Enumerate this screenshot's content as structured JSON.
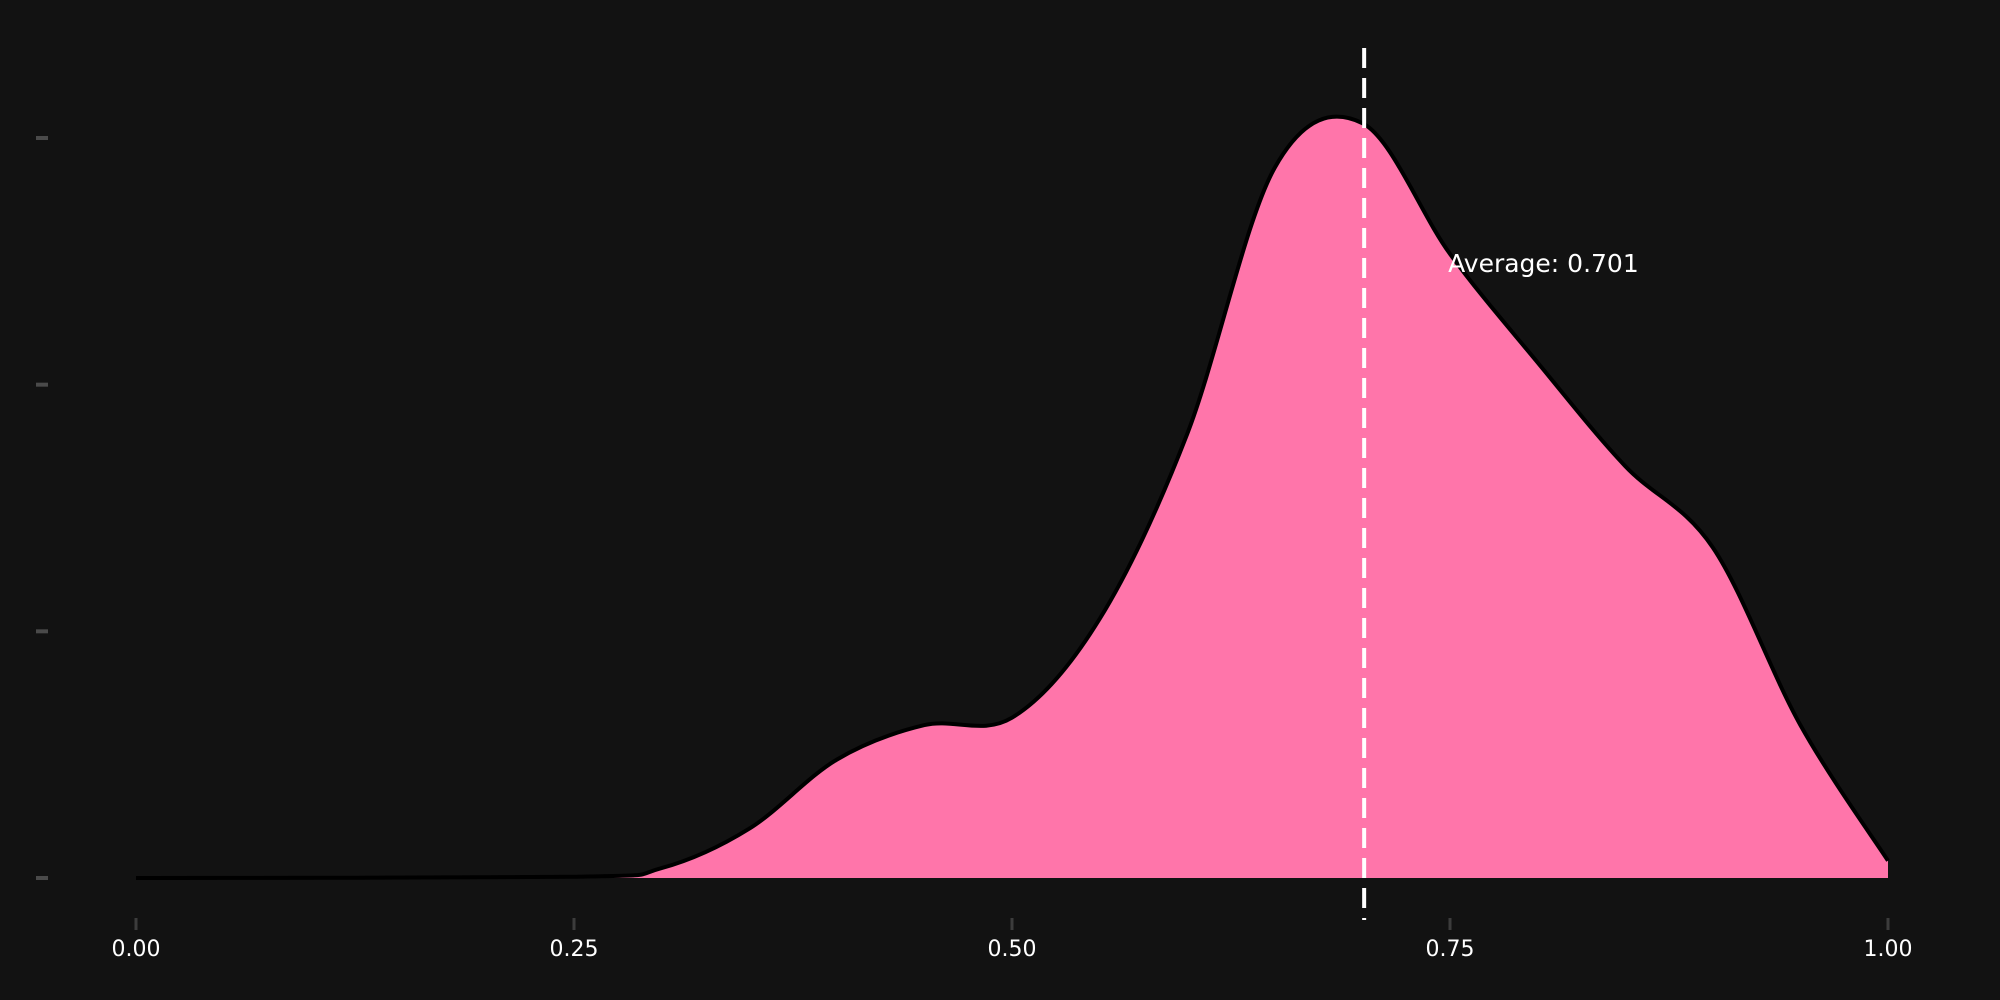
{
  "colors": {
    "background": "#121212",
    "fill": "#ff75aa",
    "outline": "#000000",
    "mean_line": "#ffffff",
    "text": "#ffffff",
    "y_tick": "#4a4a4a",
    "x_tick": "#3c3c3c"
  },
  "chart_data": {
    "type": "area",
    "x_ticks": [
      {
        "value": 0.0,
        "label": "0.00"
      },
      {
        "value": 0.25,
        "label": "0.25"
      },
      {
        "value": 0.5,
        "label": "0.50"
      },
      {
        "value": 0.75,
        "label": "0.75"
      },
      {
        "value": 1.0,
        "label": "1.00"
      }
    ],
    "y_ticks": [
      0,
      1,
      2,
      3
    ],
    "xlim": [
      0,
      1
    ],
    "ylim": [
      0,
      3
    ],
    "grid": false,
    "density": {
      "x": [
        0.0,
        0.25,
        0.3,
        0.35,
        0.4,
        0.45,
        0.5,
        0.55,
        0.6,
        0.65,
        0.7,
        0.75,
        0.8,
        0.85,
        0.9,
        0.95,
        1.0
      ],
      "y": [
        0.0,
        0.005,
        0.04,
        0.2,
        0.48,
        0.62,
        0.65,
        1.05,
        1.8,
        2.88,
        3.06,
        2.53,
        2.09,
        1.67,
        1.34,
        0.62,
        0.07
      ]
    },
    "mean": 0.701,
    "annotation": "Average: 0.701"
  }
}
